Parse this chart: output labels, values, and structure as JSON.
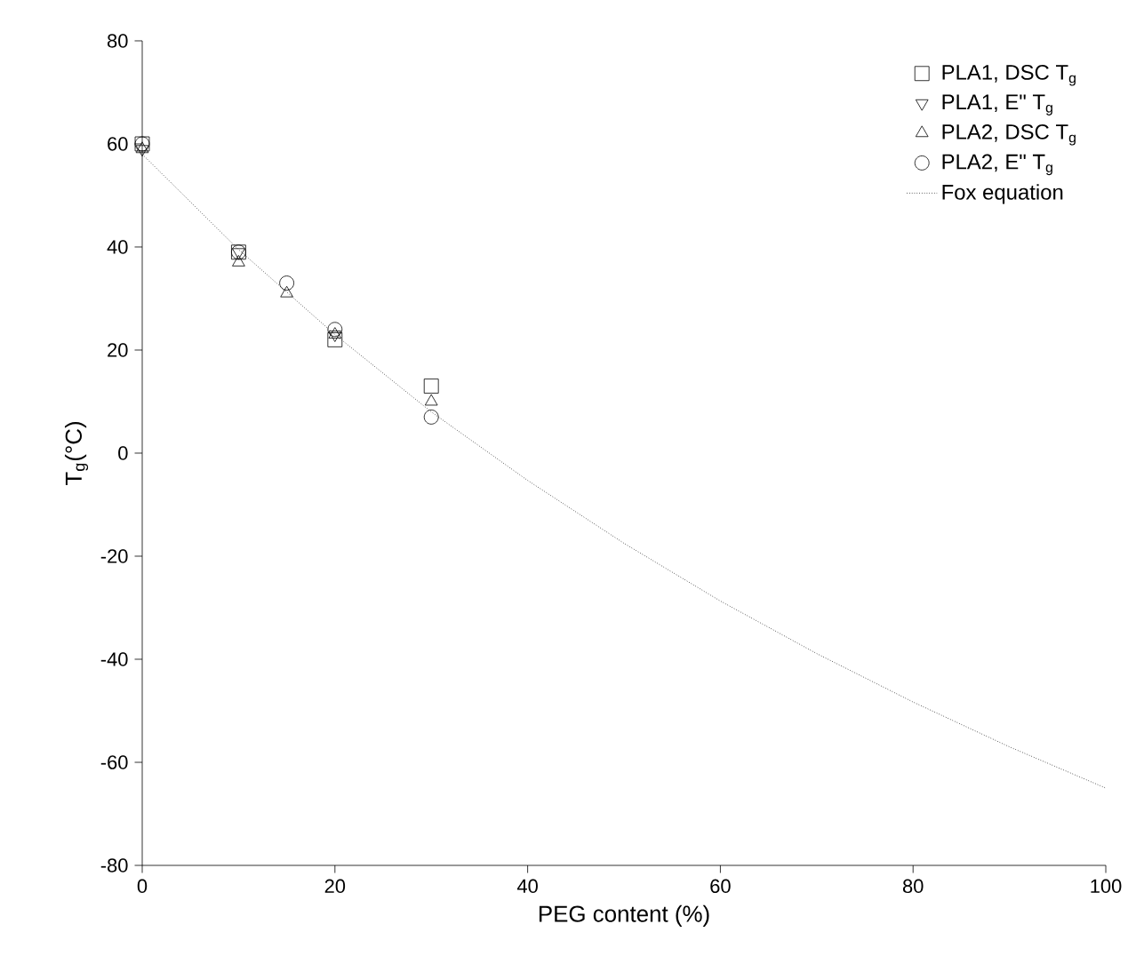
{
  "chart_data": {
    "type": "scatter",
    "xlabel": "PEG content (%)",
    "ylabel": "T$_{g}$(°C)",
    "xlim": [
      0,
      100
    ],
    "xticks": [
      0,
      20,
      40,
      60,
      80,
      100
    ],
    "ylim": [
      -80,
      80
    ],
    "yticks": [
      -80,
      -60,
      -40,
      -20,
      0,
      20,
      40,
      60,
      80
    ],
    "grid": false,
    "legend": "top right",
    "series": [
      {
        "name": "PLA1, DSC T$_{g}$",
        "color": "#000000",
        "marker": "square",
        "x": [
          0,
          10,
          20,
          30
        ],
        "values": [
          60,
          39,
          22,
          13
        ]
      },
      {
        "name": "PLA1, E\" T$_{g}$",
        "color": "#000000",
        "marker": "triangle-down",
        "x": [
          0,
          10,
          20
        ],
        "values": [
          59,
          39,
          23
        ]
      },
      {
        "name": "PLA2, DSC T$_{g}$",
        "color": "#000000",
        "marker": "triangle",
        "x": [
          0,
          10,
          15,
          20,
          30
        ],
        "values": [
          59,
          37,
          31,
          23,
          10
        ]
      },
      {
        "name": "PLA2, E\" T$_{g}$",
        "color": "#000000",
        "marker": "circle",
        "x": [
          0,
          10,
          15,
          20,
          30
        ],
        "values": [
          60,
          39,
          33,
          24,
          7
        ]
      },
      {
        "name": "Fox equation",
        "type": "line",
        "color": "#000000",
        "marker": "none",
        "line_style": "dotted",
        "x": [
          0,
          10,
          20,
          30,
          40,
          50,
          60,
          70,
          80,
          90,
          100
        ],
        "values": [
          58,
          39.5,
          23,
          8,
          -5.3,
          -17.5,
          -28.7,
          -38.9,
          -48.3,
          -57,
          -65
        ]
      }
    ]
  }
}
